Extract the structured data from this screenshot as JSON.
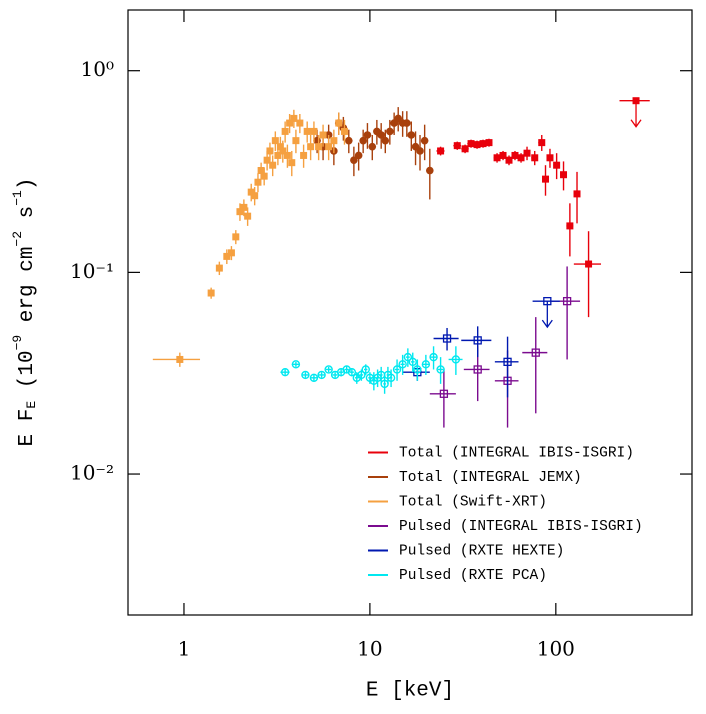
{
  "chart_data": {
    "type": "scatter",
    "x_label": "E [keV]",
    "y_label": [
      "E F",
      "E",
      " (10",
      "−9",
      " erg cm",
      "−2",
      " s",
      "−1",
      ")"
    ],
    "xlog": true,
    "ylog": true,
    "xlim": [
      0.5,
      540
    ],
    "ylim": [
      0.002,
      2
    ],
    "xticks": [
      1,
      10,
      100
    ],
    "yticks": [
      {
        "value": 0.01,
        "label": "10⁻²"
      },
      {
        "value": 0.1,
        "label": "10⁻¹"
      },
      {
        "value": 1,
        "label": "10⁰"
      }
    ],
    "legend": "lower right",
    "series": [
      {
        "name": "Total (INTEGRAL IBIS-ISGRI)",
        "color": "#e8000b",
        "marker": "square",
        "x": [
          24,
          29.5,
          32.5,
          35,
          37.7,
          40.6,
          43.7,
          48.3,
          52,
          56,
          60.3,
          65,
          70,
          77,
          84,
          88,
          93,
          101,
          110,
          119,
          130,
          150,
          270
        ],
        "xerr": [
          1.2,
          1.4,
          1.5,
          1.6,
          1.7,
          1.8,
          1.9,
          2,
          2.2,
          2.3,
          2.5,
          2.7,
          2.9,
          3.2,
          3.5,
          3.7,
          3.9,
          4,
          4.5,
          5,
          5,
          25,
          50
        ],
        "values": [
          0.4,
          0.425,
          0.41,
          0.435,
          0.43,
          0.435,
          0.44,
          0.37,
          0.38,
          0.36,
          0.38,
          0.37,
          0.39,
          0.37,
          0.44,
          0.29,
          0.37,
          0.34,
          0.305,
          0.17,
          0.245,
          0.11,
          0.71
        ],
        "yerr": [
          0.02,
          0.02,
          0.02,
          0.02,
          0.02,
          0.02,
          0.02,
          0.02,
          0.02,
          0.02,
          0.02,
          0.02,
          0.03,
          0.03,
          0.04,
          0.05,
          0.04,
          0.05,
          0.05,
          0.05,
          0.07,
          0.05,
          0
        ],
        "upper_limit": [
          false,
          false,
          false,
          false,
          false,
          false,
          false,
          false,
          false,
          false,
          false,
          false,
          false,
          false,
          false,
          false,
          false,
          false,
          false,
          false,
          false,
          false,
          true
        ]
      },
      {
        "name": "Total (INTEGRAL JEMX)",
        "color": "#a8400c",
        "marker": "circle",
        "x": [
          5.2,
          5.6,
          6,
          6.4,
          6.8,
          7.2,
          7.7,
          8.2,
          8.7,
          9.2,
          9.7,
          10.3,
          10.9,
          11.5,
          12.1,
          12.8,
          13.5,
          14.2,
          15,
          15.8,
          16.7,
          17.6,
          18.6,
          19.7,
          21
        ],
        "xerr": [
          0.2,
          0.2,
          0.2,
          0.2,
          0.2,
          0.2,
          0.25,
          0.25,
          0.25,
          0.25,
          0.25,
          0.3,
          0.3,
          0.3,
          0.3,
          0.35,
          0.35,
          0.35,
          0.4,
          0.4,
          0.45,
          0.45,
          0.5,
          0.5,
          0.6
        ],
        "values": [
          0.45,
          0.42,
          0.48,
          0.4,
          0.55,
          0.52,
          0.45,
          0.36,
          0.38,
          0.45,
          0.48,
          0.42,
          0.5,
          0.48,
          0.45,
          0.5,
          0.55,
          0.58,
          0.55,
          0.55,
          0.48,
          0.42,
          0.4,
          0.45,
          0.32
        ],
        "yerr": [
          0.06,
          0.06,
          0.06,
          0.06,
          0.07,
          0.07,
          0.06,
          0.06,
          0.06,
          0.06,
          0.07,
          0.06,
          0.07,
          0.07,
          0.06,
          0.07,
          0.07,
          0.08,
          0.08,
          0.08,
          0.08,
          0.08,
          0.08,
          0.09,
          0.09
        ],
        "upper_limit": [
          false,
          false,
          false,
          false,
          false,
          false,
          false,
          false,
          false,
          false,
          false,
          false,
          false,
          false,
          false,
          false,
          false,
          false,
          false,
          false,
          false,
          false,
          false,
          false,
          false
        ]
      },
      {
        "name": "Total (Swift-XRT)",
        "color": "#f5a040",
        "marker": "square",
        "x": [
          0.95,
          1.4,
          1.55,
          1.7,
          1.8,
          1.9,
          2,
          2.1,
          2.2,
          2.3,
          2.4,
          2.5,
          2.6,
          2.7,
          2.8,
          2.9,
          3,
          3.1,
          3.2,
          3.3,
          3.4,
          3.5,
          3.6,
          3.7,
          3.8,
          3.9,
          4,
          4.2,
          4.4,
          4.6,
          4.8,
          5,
          5.3,
          5.6,
          6,
          6.4,
          6.8,
          7.3
        ],
        "xerr": [
          0.27,
          0.05,
          0.05,
          0.05,
          0.05,
          0.05,
          0.05,
          0.05,
          0.05,
          0.05,
          0.05,
          0.05,
          0.05,
          0.05,
          0.05,
          0.05,
          0.05,
          0.05,
          0.05,
          0.05,
          0.05,
          0.05,
          0.05,
          0.05,
          0.05,
          0.05,
          0.1,
          0.1,
          0.1,
          0.1,
          0.1,
          0.1,
          0.15,
          0.15,
          0.2,
          0.2,
          0.2,
          0.25
        ],
        "values": [
          0.037,
          0.079,
          0.105,
          0.12,
          0.125,
          0.15,
          0.2,
          0.21,
          0.19,
          0.25,
          0.24,
          0.28,
          0.32,
          0.3,
          0.36,
          0.4,
          0.34,
          0.45,
          0.38,
          0.42,
          0.4,
          0.5,
          0.38,
          0.55,
          0.35,
          0.58,
          0.45,
          0.55,
          0.38,
          0.5,
          0.42,
          0.5,
          0.42,
          0.48,
          0.42,
          0.45,
          0.55,
          0.5
        ],
        "yerr": [
          0.003,
          0.005,
          0.008,
          0.01,
          0.01,
          0.012,
          0.02,
          0.02,
          0.02,
          0.025,
          0.025,
          0.03,
          0.03,
          0.03,
          0.04,
          0.04,
          0.04,
          0.05,
          0.04,
          0.05,
          0.05,
          0.06,
          0.05,
          0.06,
          0.05,
          0.06,
          0.06,
          0.06,
          0.05,
          0.06,
          0.06,
          0.06,
          0.06,
          0.06,
          0.06,
          0.06,
          0.07,
          0.07
        ],
        "upper_limit": [
          false,
          false,
          false,
          false,
          false,
          false,
          false,
          false,
          false,
          false,
          false,
          false,
          false,
          false,
          false,
          false,
          false,
          false,
          false,
          false,
          false,
          false,
          false,
          false,
          false,
          false,
          false,
          false,
          false,
          false,
          false,
          false,
          false,
          false,
          false,
          false,
          false,
          false
        ]
      },
      {
        "name": "Pulsed (INTEGRAL IBIS-ISGRI)",
        "color": "#7b0b8f",
        "marker": "open-square",
        "x": [
          25,
          38,
          55,
          78,
          115
        ],
        "xerr": [
          4,
          6,
          8,
          12,
          20
        ],
        "values": [
          0.025,
          0.033,
          0.029,
          0.04,
          0.072
        ],
        "yerr": [
          0.008,
          0.01,
          0.012,
          0.02,
          0.035
        ],
        "upper_limit": [
          false,
          false,
          false,
          false,
          false
        ]
      },
      {
        "name": "Pulsed (RXTE HEXTE)",
        "color": "#0018b0",
        "marker": "open-square",
        "x": [
          18,
          26,
          38,
          55,
          90
        ],
        "xerr": [
          3,
          4,
          7,
          8,
          15
        ],
        "values": [
          0.032,
          0.047,
          0.046,
          0.036,
          0.072
        ],
        "yerr": [
          0.003,
          0.006,
          0.008,
          0.012,
          0
        ],
        "upper_limit": [
          false,
          false,
          false,
          false,
          true
        ]
      },
      {
        "name": "Pulsed (RXTE PCA)",
        "color": "#00e8f0",
        "marker": "open-circle",
        "x": [
          3.5,
          4,
          4.5,
          5,
          5.5,
          6,
          6.5,
          7,
          7.5,
          8,
          8.5,
          9,
          9.5,
          10,
          10.5,
          11,
          11.5,
          12,
          12.5,
          13,
          14,
          15,
          16,
          17,
          18,
          20,
          22,
          24,
          29
        ],
        "xerr": [
          0.2,
          0.2,
          0.2,
          0.2,
          0.2,
          0.2,
          0.2,
          0.2,
          0.2,
          0.2,
          0.2,
          0.2,
          0.2,
          0.2,
          0.2,
          0.2,
          0.2,
          0.2,
          0.2,
          0.2,
          0.4,
          0.4,
          0.4,
          0.4,
          0.5,
          0.8,
          0.8,
          0.8,
          2.5
        ],
        "values": [
          0.032,
          0.035,
          0.031,
          0.03,
          0.031,
          0.033,
          0.031,
          0.032,
          0.033,
          0.032,
          0.03,
          0.031,
          0.033,
          0.03,
          0.029,
          0.03,
          0.031,
          0.028,
          0.031,
          0.03,
          0.033,
          0.035,
          0.038,
          0.036,
          0.033,
          0.035,
          0.038,
          0.033,
          0.037
        ],
        "yerr": [
          0.001,
          0.001,
          0.001,
          0.001,
          0.001,
          0.001,
          0.001,
          0.0015,
          0.0015,
          0.0015,
          0.002,
          0.002,
          0.002,
          0.002,
          0.003,
          0.003,
          0.003,
          0.003,
          0.003,
          0.003,
          0.004,
          0.004,
          0.004,
          0.004,
          0.004,
          0.004,
          0.005,
          0.005,
          0.006
        ],
        "upper_limit": [
          false,
          false,
          false,
          false,
          false,
          false,
          false,
          false,
          false,
          false,
          false,
          false,
          false,
          false,
          false,
          false,
          false,
          false,
          false,
          false,
          false,
          false,
          false,
          false,
          false,
          false,
          false,
          false,
          false
        ]
      }
    ]
  }
}
